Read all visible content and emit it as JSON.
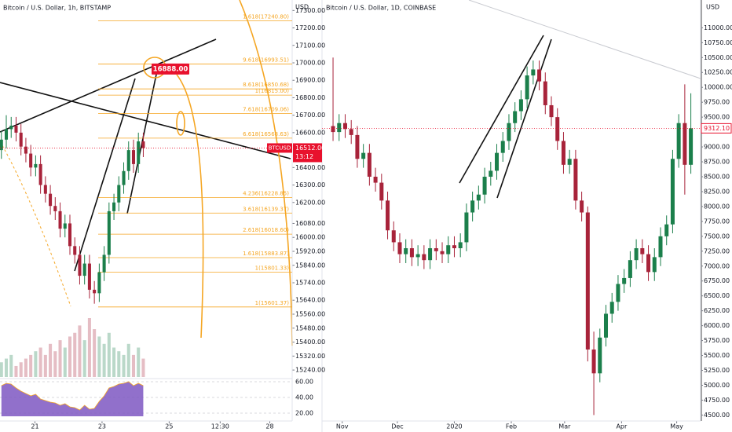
{
  "chart_data": [
    {
      "type": "candlestick",
      "title": "Bitcoin / U.S. Dollar, 1h, BITSTAMP",
      "currency": "USD",
      "up_color": "#1b7f4b",
      "down_color": "#a8233a",
      "xlim": [
        -25,
        184
      ],
      "xticks": [
        {
          "value": 0,
          "label": "21"
        },
        {
          "value": 48,
          "label": "23"
        },
        {
          "value": 96,
          "label": "25"
        },
        {
          "value": 132.5,
          "label": "12:30"
        },
        {
          "value": 168,
          "label": "28"
        }
      ],
      "ylim": [
        15200,
        17360
      ],
      "yticks": [
        {
          "value": 17300,
          "label": "17300.00"
        },
        {
          "value": 17200,
          "label": "17200.00"
        },
        {
          "value": 17100,
          "label": "17100.00"
        },
        {
          "value": 17000,
          "label": "17000.00"
        },
        {
          "value": 16900,
          "label": "16900.00"
        },
        {
          "value": 16800,
          "label": "16800.00"
        },
        {
          "value": 16700,
          "label": "16700.00"
        },
        {
          "value": 16600,
          "label": "16600.00"
        },
        {
          "value": 16400,
          "label": "16400.00"
        },
        {
          "value": 16300,
          "label": "16300.00"
        },
        {
          "value": 16200,
          "label": "16200.00"
        },
        {
          "value": 16080,
          "label": "16080.00"
        },
        {
          "value": 16000,
          "label": "16000.00"
        },
        {
          "value": 15920,
          "label": "15920.00"
        },
        {
          "value": 15840,
          "label": "15840.00"
        },
        {
          "value": 15740,
          "label": "15740.00"
        },
        {
          "value": 15640,
          "label": "15640.00"
        },
        {
          "value": 15560,
          "label": "15560.00"
        },
        {
          "value": 15480,
          "label": "15480.00"
        },
        {
          "value": 15400,
          "label": "15400.00"
        },
        {
          "value": 15320,
          "label": "15320.00"
        },
        {
          "value": 15240,
          "label": "15240.00"
        }
      ],
      "x": [
        -24,
        -20.5,
        -17,
        -13.5,
        -10,
        -6.5,
        -3,
        0.5,
        4,
        7.5,
        11,
        14.5,
        18,
        21.5,
        25,
        28.5,
        32,
        35.5,
        39,
        42.5,
        46,
        49.5,
        53,
        56.5,
        60,
        63.5,
        67,
        70.5,
        74,
        77.5
      ],
      "open": [
        16500,
        16560,
        16620,
        16640,
        16600,
        16520,
        16480,
        16400,
        16420,
        16300,
        16250,
        16180,
        16150,
        16050,
        16080,
        15950,
        15900,
        15780,
        15850,
        15700,
        15680,
        15800,
        15900,
        16150,
        16200,
        16300,
        16380,
        16500,
        16420,
        16550
      ],
      "high": [
        16610,
        16700,
        16690,
        16690,
        16650,
        16570,
        16530,
        16470,
        16470,
        16350,
        16300,
        16230,
        16200,
        16130,
        16130,
        16000,
        15950,
        15900,
        15900,
        15750,
        15850,
        15950,
        16200,
        16250,
        16350,
        16430,
        16550,
        16560,
        16600,
        16600
      ],
      "low": [
        16450,
        16510,
        16570,
        16550,
        16470,
        16430,
        16350,
        16350,
        16250,
        16200,
        16130,
        16100,
        16000,
        16000,
        15900,
        15850,
        15730,
        15730,
        15650,
        15620,
        15630,
        15750,
        15850,
        16100,
        16150,
        16250,
        16330,
        16370,
        16370,
        16460
      ],
      "close": [
        16560,
        16620,
        16640,
        16600,
        16520,
        16480,
        16400,
        16420,
        16300,
        16250,
        16180,
        16150,
        16050,
        16080,
        15950,
        15900,
        15780,
        15850,
        15700,
        15680,
        15800,
        15900,
        16150,
        16200,
        16300,
        16380,
        16500,
        16420,
        16550,
        16512
      ],
      "volume": [
        20,
        25,
        30,
        15,
        20,
        25,
        30,
        35,
        40,
        30,
        45,
        35,
        50,
        40,
        55,
        60,
        70,
        50,
        80,
        65,
        55,
        45,
        60,
        40,
        35,
        30,
        45,
        30,
        40,
        25
      ],
      "rsi": [
        55,
        58,
        57,
        52,
        48,
        45,
        42,
        44,
        38,
        36,
        34,
        33,
        30,
        32,
        28,
        27,
        24,
        30,
        25,
        26,
        35,
        42,
        52,
        54,
        57,
        58,
        60,
        55,
        58,
        55
      ],
      "rsi_color": "#7e57c2",
      "rsi_ylim": [
        16,
        62
      ],
      "rsi_yticks": [
        {
          "value": 60,
          "label": "60.00"
        },
        {
          "value": 40,
          "label": "40.00"
        },
        {
          "value": 20,
          "label": "20.00"
        }
      ],
      "fib_color": "#f5a623",
      "fib_levels": [
        {
          "value": 17240.8,
          "label": "1.618(17240.80)"
        },
        {
          "value": 16993.51,
          "label": "9.618(16993.51)"
        },
        {
          "value": 16850.68,
          "label": "8.618(16850.68)"
        },
        {
          "value": 16815,
          "label": "1(16815.00)"
        },
        {
          "value": 16709.06,
          "label": "7.618(16709.06)"
        },
        {
          "value": 16568.63,
          "label": "6.618(16568.63)"
        },
        {
          "value": 16228.85,
          "label": "4.236(16228.85)"
        },
        {
          "value": 16139.37,
          "label": "3.618(16139.37)"
        },
        {
          "value": 16018.6,
          "label": "2.618(16018.60)"
        },
        {
          "value": 15883.87,
          "label": "1.618(15883.87)"
        },
        {
          "value": 15801.33,
          "label": "1(15801.33)"
        },
        {
          "value": 15601.37,
          "label": "1(15601.37)"
        }
      ],
      "target_tag": {
        "value": 16888,
        "label": "16888.00"
      },
      "last_price": {
        "symbol": "BTCUSD",
        "value": 16512,
        "label": "16512.00",
        "countdown": "13:12"
      }
    },
    {
      "type": "candlestick",
      "title": "Bitcoin / U.S. Dollar, 1D, COINBASE",
      "currency": "USD",
      "up_color": "#1b7f4b",
      "down_color": "#a8233a",
      "xlim": [
        -11,
        195
      ],
      "xticks": [
        {
          "value": 0,
          "label": "Nov"
        },
        {
          "value": 30,
          "label": "Dec"
        },
        {
          "value": 61,
          "label": "2020"
        },
        {
          "value": 92,
          "label": "Feb"
        },
        {
          "value": 121,
          "label": "Mar"
        },
        {
          "value": 152,
          "label": "Apr"
        },
        {
          "value": 182,
          "label": "May"
        }
      ],
      "ylim": [
        4400,
        11400
      ],
      "yticks": [
        {
          "value": 11000,
          "label": "11000.00"
        },
        {
          "value": 10750,
          "label": "10750.00"
        },
        {
          "value": 10500,
          "label": "10500.00"
        },
        {
          "value": 10250,
          "label": "10250.00"
        },
        {
          "value": 10000,
          "label": "10000.00"
        },
        {
          "value": 9750,
          "label": "9750.00"
        },
        {
          "value": 9500,
          "label": "9500.00"
        },
        {
          "value": 9000,
          "label": "9000.00"
        },
        {
          "value": 8750,
          "label": "8750.00"
        },
        {
          "value": 8500,
          "label": "8500.00"
        },
        {
          "value": 8250,
          "label": "8250.00"
        },
        {
          "value": 8000,
          "label": "8000.00"
        },
        {
          "value": 7750,
          "label": "7750.00"
        },
        {
          "value": 7500,
          "label": "7500.00"
        },
        {
          "value": 7250,
          "label": "7250.00"
        },
        {
          "value": 7000,
          "label": "7000.00"
        },
        {
          "value": 6750,
          "label": "6750.00"
        },
        {
          "value": 6500,
          "label": "6500.00"
        },
        {
          "value": 6250,
          "label": "6250.00"
        },
        {
          "value": 6000,
          "label": "6000.00"
        },
        {
          "value": 5750,
          "label": "5750.00"
        },
        {
          "value": 5500,
          "label": "5500.00"
        },
        {
          "value": 5250,
          "label": "5250.00"
        },
        {
          "value": 5000,
          "label": "5000.00"
        },
        {
          "value": 4750,
          "label": "4750.00"
        },
        {
          "value": 4500,
          "label": "4500.00"
        }
      ],
      "x": [
        -5,
        -1.7,
        1.6,
        4.9,
        8.2,
        11.5,
        14.8,
        18.1,
        21.4,
        24.7,
        28,
        31.3,
        34.6,
        37.9,
        41.2,
        44.5,
        47.8,
        51.1,
        54.4,
        57.7,
        61,
        64.3,
        67.6,
        70.9,
        74.2,
        77.5,
        80.8,
        84.1,
        87.4,
        90.7,
        94,
        97.3,
        100.6,
        103.9,
        107.2,
        110.5,
        113.8,
        117.1,
        120.4,
        123.7,
        127,
        130.3,
        133.6,
        136.9,
        140.2,
        143.5,
        146.8,
        150.1,
        153.4,
        156.7,
        160,
        163.3,
        166.6,
        169.9,
        173.2,
        176.5,
        179.8,
        183.1,
        186.4,
        189.7
      ],
      "open": [
        9350,
        9250,
        9400,
        9300,
        9200,
        8800,
        8900,
        8500,
        8400,
        8100,
        7600,
        7400,
        7200,
        7300,
        7150,
        7200,
        7100,
        7300,
        7250,
        7200,
        7350,
        7300,
        7400,
        7900,
        8100,
        8200,
        8500,
        8600,
        8900,
        9100,
        9400,
        9600,
        9800,
        10200,
        10300,
        10100,
        9700,
        9500,
        9100,
        8700,
        8800,
        8100,
        7900,
        5600,
        5200,
        5800,
        6200,
        6400,
        6700,
        6800,
        7100,
        7300,
        7200,
        6900,
        7150,
        7500,
        7700,
        8800,
        9400,
        8700
      ],
      "high": [
        10500,
        9550,
        9550,
        9450,
        9350,
        9050,
        9050,
        8650,
        8550,
        8250,
        7750,
        7550,
        7450,
        7450,
        7350,
        7350,
        7450,
        7450,
        7400,
        7500,
        7500,
        7550,
        8050,
        8250,
        8350,
        8650,
        8750,
        9050,
        9250,
        9550,
        9750,
        9950,
        10350,
        10450,
        10450,
        10250,
        9850,
        9650,
        9250,
        8950,
        8950,
        8250,
        8000,
        5900,
        5950,
        6350,
        6550,
        6850,
        6950,
        7250,
        7450,
        7450,
        7350,
        7300,
        7650,
        7850,
        8950,
        9550,
        10050,
        9900
      ],
      "low": [
        9100,
        9100,
        9150,
        9050,
        8650,
        8650,
        8350,
        8250,
        7950,
        7450,
        7250,
        7050,
        7050,
        7000,
        7000,
        6950,
        6950,
        7100,
        7050,
        7050,
        7150,
        7150,
        7250,
        7750,
        7950,
        8050,
        8350,
        8450,
        8750,
        8950,
        9250,
        9450,
        9650,
        10050,
        9950,
        9550,
        9350,
        8950,
        8550,
        8550,
        7950,
        7750,
        5400,
        4500,
        5050,
        5650,
        6050,
        6250,
        6550,
        6650,
        6950,
        7050,
        6750,
        6750,
        7000,
        7350,
        7550,
        8650,
        8200,
        8550
      ],
      "close": [
        9250,
        9400,
        9300,
        9200,
        8800,
        8900,
        8500,
        8400,
        8100,
        7600,
        7400,
        7200,
        7300,
        7150,
        7200,
        7100,
        7300,
        7250,
        7200,
        7350,
        7300,
        7400,
        7900,
        8100,
        8200,
        8500,
        8600,
        8900,
        9100,
        9400,
        9600,
        9800,
        10200,
        10300,
        10100,
        9700,
        9500,
        9100,
        8700,
        8800,
        8100,
        7900,
        5600,
        5200,
        5800,
        6200,
        6400,
        6700,
        6800,
        7100,
        7300,
        7200,
        6900,
        7150,
        7500,
        7700,
        8800,
        9400,
        8700,
        9312.1
      ],
      "last_price": {
        "value": 9312.1,
        "label": "9312.10"
      }
    }
  ]
}
